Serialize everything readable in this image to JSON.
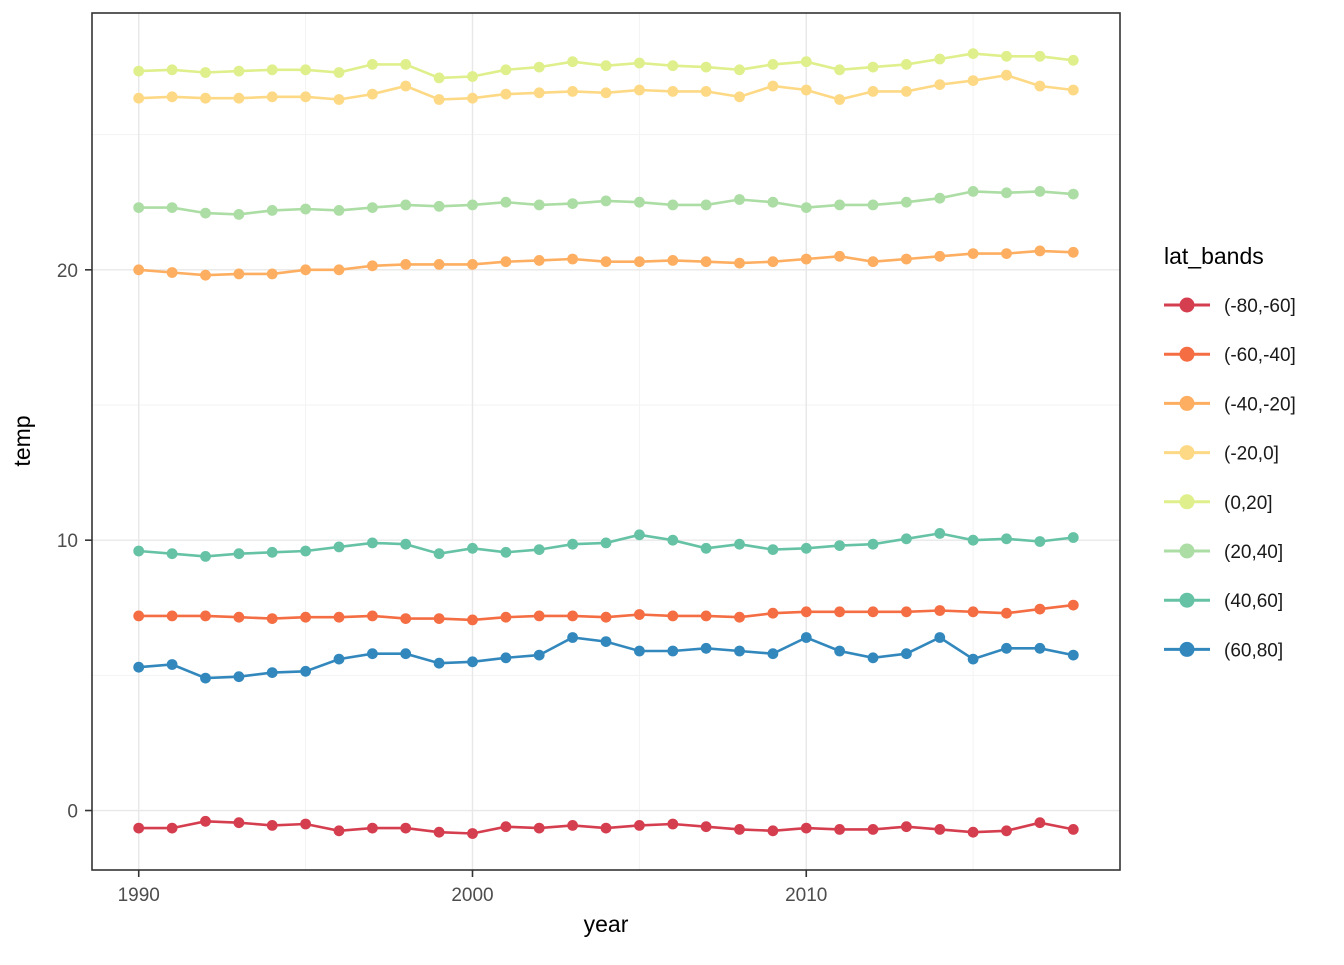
{
  "chart_data": {
    "type": "line",
    "title": "",
    "xlabel": "year",
    "ylabel": "temp",
    "legend_title": "lat_bands",
    "legend_position": "right",
    "grid": true,
    "panel_theme": {
      "background": "#ffffff",
      "border_color": "#333333",
      "grid_major_color": "#e8e8e8",
      "grid_minor_color": "#f3f3f3",
      "tick_color": "#333333",
      "tick_label_color": "#4d4d4d"
    },
    "xlim": [
      1988.6,
      2019.4
    ],
    "ylim": [
      -2.2,
      29.5
    ],
    "x_ticks": [
      1990,
      2000,
      2010
    ],
    "x_minor_ticks": [
      1995,
      2005,
      2015
    ],
    "y_ticks": [
      0,
      10,
      20
    ],
    "y_minor_ticks": [
      5,
      15,
      25
    ],
    "x": [
      1990,
      1991,
      1992,
      1993,
      1994,
      1995,
      1996,
      1997,
      1998,
      1999,
      2000,
      2001,
      2002,
      2003,
      2004,
      2005,
      2006,
      2007,
      2008,
      2009,
      2010,
      2011,
      2012,
      2013,
      2014,
      2015,
      2016,
      2017,
      2018
    ],
    "series": [
      {
        "name": "(-80,-60]",
        "color": "#d53e4f",
        "values": [
          -0.65,
          -0.65,
          -0.4,
          -0.45,
          -0.55,
          -0.5,
          -0.75,
          -0.65,
          -0.65,
          -0.8,
          -0.85,
          -0.6,
          -0.65,
          -0.55,
          -0.65,
          -0.55,
          -0.5,
          -0.6,
          -0.7,
          -0.75,
          -0.65,
          -0.7,
          -0.7,
          -0.6,
          -0.7,
          -0.8,
          -0.75,
          -0.45,
          -0.7
        ]
      },
      {
        "name": "(-60,-40]",
        "color": "#f46d43",
        "values": [
          7.2,
          7.2,
          7.2,
          7.15,
          7.1,
          7.15,
          7.15,
          7.2,
          7.1,
          7.1,
          7.05,
          7.15,
          7.2,
          7.2,
          7.15,
          7.25,
          7.2,
          7.2,
          7.15,
          7.3,
          7.35,
          7.35,
          7.35,
          7.35,
          7.4,
          7.35,
          7.3,
          7.45,
          7.6
        ]
      },
      {
        "name": "(-40,-20]",
        "color": "#fdae61",
        "values": [
          20.0,
          19.9,
          19.8,
          19.85,
          19.85,
          20.0,
          20.0,
          20.15,
          20.2,
          20.2,
          20.2,
          20.3,
          20.35,
          20.4,
          20.3,
          20.3,
          20.35,
          20.3,
          20.25,
          20.3,
          20.4,
          20.5,
          20.3,
          20.4,
          20.5,
          20.6,
          20.6,
          20.7,
          20.65
        ]
      },
      {
        "name": "(-20,0]",
        "color": "#fdd985",
        "values": [
          26.35,
          26.4,
          26.35,
          26.35,
          26.4,
          26.4,
          26.3,
          26.5,
          26.8,
          26.3,
          26.35,
          26.5,
          26.55,
          26.6,
          26.55,
          26.65,
          26.6,
          26.6,
          26.4,
          26.8,
          26.65,
          26.3,
          26.6,
          26.6,
          26.85,
          27.0,
          27.2,
          26.8,
          26.65
        ]
      },
      {
        "name": "(0,20]",
        "color": "#dfef8b",
        "values": [
          27.35,
          27.4,
          27.3,
          27.35,
          27.4,
          27.4,
          27.3,
          27.6,
          27.6,
          27.1,
          27.15,
          27.4,
          27.5,
          27.7,
          27.55,
          27.65,
          27.55,
          27.5,
          27.4,
          27.6,
          27.7,
          27.4,
          27.5,
          27.6,
          27.8,
          28.0,
          27.9,
          27.9,
          27.75
        ]
      },
      {
        "name": "(20,40]",
        "color": "#abdda4",
        "values": [
          22.3,
          22.3,
          22.1,
          22.05,
          22.2,
          22.25,
          22.2,
          22.3,
          22.4,
          22.35,
          22.4,
          22.5,
          22.4,
          22.45,
          22.55,
          22.5,
          22.4,
          22.4,
          22.6,
          22.5,
          22.3,
          22.4,
          22.4,
          22.5,
          22.65,
          22.9,
          22.85,
          22.9,
          22.8
        ]
      },
      {
        "name": "(40,60]",
        "color": "#66c2a5",
        "values": [
          9.6,
          9.5,
          9.4,
          9.5,
          9.55,
          9.6,
          9.75,
          9.9,
          9.85,
          9.5,
          9.7,
          9.55,
          9.65,
          9.85,
          9.9,
          10.2,
          10.0,
          9.7,
          9.85,
          9.65,
          9.7,
          9.8,
          9.85,
          10.05,
          10.25,
          10.0,
          10.05,
          9.95,
          10.1
        ]
      },
      {
        "name": "(60,80]",
        "color": "#3288bd",
        "values": [
          5.3,
          5.4,
          4.9,
          4.95,
          5.1,
          5.15,
          5.6,
          5.8,
          5.8,
          5.45,
          5.5,
          5.65,
          5.75,
          6.4,
          6.25,
          5.9,
          5.9,
          6.0,
          5.9,
          5.8,
          6.4,
          5.9,
          5.65,
          5.8,
          6.4,
          5.6,
          6.0,
          6.0,
          5.75
        ]
      }
    ]
  }
}
